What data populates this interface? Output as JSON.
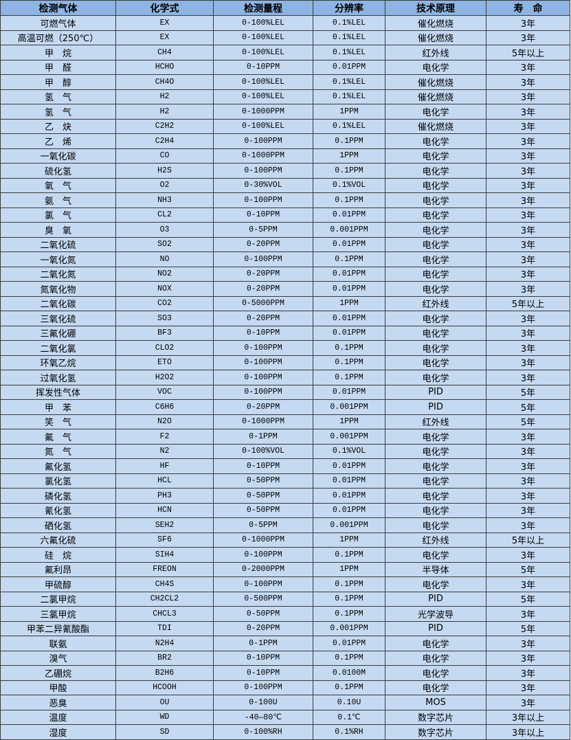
{
  "table": {
    "headers": [
      "检测气体",
      "化学式",
      "检测量程",
      "分辨率",
      "技术原理",
      "寿　命"
    ],
    "rows": [
      [
        "可燃气体",
        "EX",
        "0-100%LEL",
        "0.1%LEL",
        "催化燃烧",
        "3年"
      ],
      [
        "高温可燃（250℃）",
        "EX",
        "0-100%LEL",
        "0.1%LEL",
        "催化燃烧",
        "3年"
      ],
      [
        "甲　烷",
        "CH4",
        "0-100%LEL",
        "0.1%LEL",
        "红外线",
        "5年以上"
      ],
      [
        "甲　醛",
        "HCHO",
        "0-10PPM",
        "0.01PPM",
        "电化学",
        "3年"
      ],
      [
        "甲　醇",
        "CH4O",
        "0-100%LEL",
        "0.1%LEL",
        "催化燃烧",
        "3年"
      ],
      [
        "氢　气",
        "H2",
        "0-100%LEL",
        "0.1%LEL",
        "催化燃烧",
        "3年"
      ],
      [
        "氢　气",
        "H2",
        "0-1000PPM",
        "1PPM",
        "电化学",
        "3年"
      ],
      [
        "乙　炔",
        "C2H2",
        "0-100%LEL",
        "0.1%LEL",
        "催化燃烧",
        "3年"
      ],
      [
        "乙　烯",
        "C2H4",
        "0-100PPM",
        "0.1PPM",
        "电化学",
        "3年"
      ],
      [
        "一氧化碳",
        "CO",
        "0-1000PPM",
        "1PPM",
        "电化学",
        "3年"
      ],
      [
        "硫化氢",
        "H2S",
        "0-100PPM",
        "0.1PPM",
        "电化学",
        "3年"
      ],
      [
        "氧　气",
        "O2",
        "0-30%VOL",
        "0.1%VOL",
        "电化学",
        "3年"
      ],
      [
        "氨　气",
        "NH3",
        "0-100PPM",
        "0.1PPM",
        "电化学",
        "3年"
      ],
      [
        "氯　气",
        "CL2",
        "0-10PPM",
        "0.01PPM",
        "电化学",
        "3年"
      ],
      [
        "臭　氧",
        "O3",
        "0-5PPM",
        "0.001PPM",
        "电化学",
        "3年"
      ],
      [
        "二氧化硫",
        "SO2",
        "0-20PPM",
        "0.01PPM",
        "电化学",
        "3年"
      ],
      [
        "一氧化氮",
        "NO",
        "0-100PPM",
        "0.1PPM",
        "电化学",
        "3年"
      ],
      [
        "二氧化氮",
        "NO2",
        "0-20PPM",
        "0.01PPM",
        "电化学",
        "3年"
      ],
      [
        "氮氧化物",
        "NOX",
        "0-20PPM",
        "0.01PPM",
        "电化学",
        "3年"
      ],
      [
        "二氧化碳",
        "CO2",
        "0-5000PPM",
        "1PPM",
        "红外线",
        "5年以上"
      ],
      [
        "三氧化硫",
        "SO3",
        "0-20PPM",
        "0.01PPM",
        "电化学",
        "3年"
      ],
      [
        "三氟化硼",
        "BF3",
        "0-10PPM",
        "0.01PPM",
        "电化学",
        "3年"
      ],
      [
        "二氧化氯",
        "CLO2",
        "0-100PPM",
        "0.1PPM",
        "电化学",
        "3年"
      ],
      [
        "环氧乙烷",
        "ETO",
        "0-100PPM",
        "0.1PPM",
        "电化学",
        "3年"
      ],
      [
        "过氧化氢",
        "H2O2",
        "0-100PPM",
        "0.1PPM",
        "电化学",
        "3年"
      ],
      [
        "挥发性气体",
        "VOC",
        "0-100PPM",
        "0.01PPM",
        "PID",
        "5年"
      ],
      [
        "甲　苯",
        "C6H6",
        "0-20PPM",
        "0.001PPM",
        "PID",
        "5年"
      ],
      [
        "笑　气",
        "N2O",
        "0-1000PPM",
        "1PPM",
        "红外线",
        "5年"
      ],
      [
        "氟　气",
        "F2",
        "0-1PPM",
        "0.001PPM",
        "电化学",
        "3年"
      ],
      [
        "氮　气",
        "N2",
        "0-100%VOL",
        "0.1%VOL",
        "电化学",
        "3年"
      ],
      [
        "氟化氢",
        "HF",
        "0-10PPM",
        "0.01PPM",
        "电化学",
        "3年"
      ],
      [
        "氯化氢",
        "HCL",
        "0-50PPM",
        "0.01PPM",
        "电化学",
        "3年"
      ],
      [
        "磷化氢",
        "PH3",
        "0-50PPM",
        "0.01PPM",
        "电化学",
        "3年"
      ],
      [
        "氰化氢",
        "HCN",
        "0-50PPM",
        "0.01PPM",
        "电化学",
        "3年"
      ],
      [
        "硒化氢",
        "SEH2",
        "0-5PPM",
        "0.001PPM",
        "电化学",
        "3年"
      ],
      [
        "六氟化硫",
        "SF6",
        "0-1000PPM",
        "1PPM",
        "红外线",
        "5年以上"
      ],
      [
        "硅　烷",
        "SIH4",
        "0-100PPM",
        "0.1PPM",
        "电化学",
        "3年"
      ],
      [
        "氟利昂",
        "FREON",
        "0-2000PPM",
        "1PPM",
        "半导体",
        "5年"
      ],
      [
        "甲硫醇",
        "CH4S",
        "0-100PPM",
        "0.1PPM",
        "电化学",
        "3年"
      ],
      [
        "二氯甲烷",
        "CH2CL2",
        "0-500PPM",
        "0.1PPM",
        "PID",
        "5年"
      ],
      [
        "三氯甲烷",
        "CHCL3",
        "0-50PPM",
        "0.1PPM",
        "光学波导",
        "3年"
      ],
      [
        "甲苯二异氰酸酯",
        "TDI",
        "0-20PPM",
        "0.001PPM",
        "PID",
        "5年"
      ],
      [
        "联氨",
        "N2H4",
        "0-1PPM",
        "0.01PPM",
        "电化学",
        "3年"
      ],
      [
        "溴气",
        "BR2",
        "0-10PPM",
        "0.1PPM",
        "电化学",
        "3年"
      ],
      [
        "乙硼烷",
        "B2H6",
        "0-10PPM",
        "0.0100M",
        "电化学",
        "3年"
      ],
      [
        "甲酸",
        "HCOOH",
        "0-100PPM",
        "0.1PPM",
        "电化学",
        "3年"
      ],
      [
        "恶臭",
        "OU",
        "0-100U",
        "0.10U",
        "MOS",
        "3年"
      ],
      [
        "温度",
        "WD",
        "-40—80℃",
        "0.1℃",
        "数字芯片",
        "3年以上"
      ],
      [
        "湿度",
        "SD",
        "0-100%RH",
        "0.1%RH",
        "数字芯片",
        "3年以上"
      ]
    ]
  }
}
